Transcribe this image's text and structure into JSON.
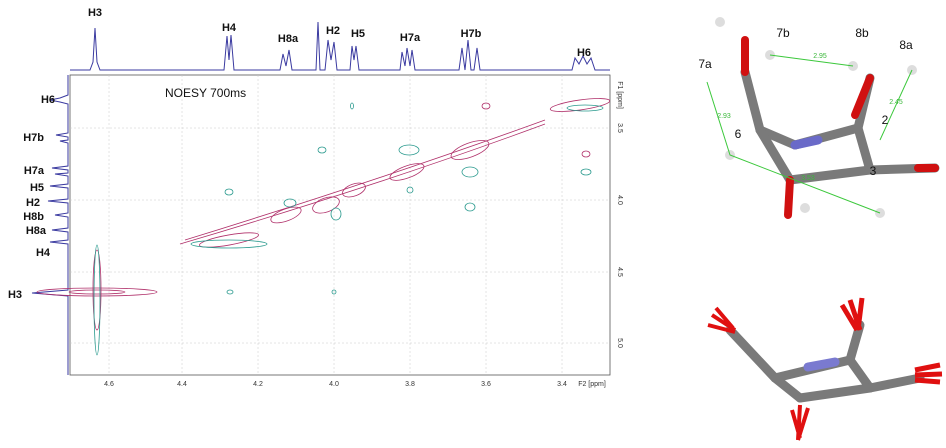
{
  "spectrum": {
    "title": "NOESY 700ms",
    "top_labels": [
      "H3",
      "H4",
      "H8a",
      "H2",
      "H5",
      "H7a",
      "H7b",
      "H6"
    ],
    "left_labels": [
      "H6",
      "H7b",
      "H7a",
      "H5",
      "H2",
      "H8b",
      "H8a",
      "H4",
      "H3"
    ],
    "x_ticks": [
      "4.6",
      "4.4",
      "4.2",
      "4.0",
      "3.8",
      "3.6",
      "3.4"
    ],
    "x_axis_label": "F2 [ppm]",
    "y_ticks": [
      "3.5",
      "4.0",
      "4.5",
      "5.0"
    ],
    "y_axis_label": "F1 [ppm]"
  },
  "molecule": {
    "atom_labels": [
      "7b",
      "8b",
      "8a",
      "7a",
      "6",
      "2",
      "3"
    ],
    "distances": [
      "2.95",
      "2.93",
      "2.45",
      "3.53"
    ]
  }
}
